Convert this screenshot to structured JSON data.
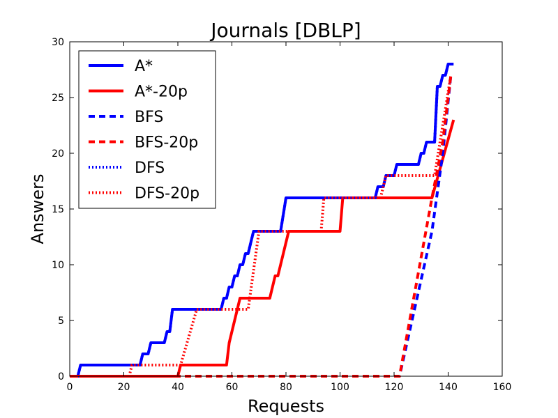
{
  "chart_data": {
    "type": "line",
    "title": "Journals [DBLP]",
    "xlabel": "Requests",
    "ylabel": "Answers",
    "xlim": [
      0,
      160
    ],
    "ylim": [
      0,
      30
    ],
    "xticks": [
      0,
      20,
      40,
      60,
      80,
      100,
      120,
      140,
      160
    ],
    "yticks": [
      0,
      5,
      10,
      15,
      20,
      25,
      30
    ],
    "grid": false,
    "legend_position": "top-left",
    "series": [
      {
        "name": "A*",
        "color": "#0000ff",
        "style": "solid",
        "points": [
          [
            0,
            0
          ],
          [
            3,
            0
          ],
          [
            4,
            1
          ],
          [
            26,
            1
          ],
          [
            27,
            2
          ],
          [
            29,
            2
          ],
          [
            30,
            3
          ],
          [
            35,
            3
          ],
          [
            36,
            4
          ],
          [
            37,
            4
          ],
          [
            38,
            6
          ],
          [
            56,
            6
          ],
          [
            57,
            7
          ],
          [
            58,
            7
          ],
          [
            59,
            8
          ],
          [
            60,
            8
          ],
          [
            61,
            9
          ],
          [
            62,
            9
          ],
          [
            63,
            10
          ],
          [
            64,
            10
          ],
          [
            65,
            11
          ],
          [
            66,
            11
          ],
          [
            67,
            12
          ],
          [
            68,
            13
          ],
          [
            78,
            13
          ],
          [
            80,
            16
          ],
          [
            113,
            16
          ],
          [
            114,
            17
          ],
          [
            116,
            17
          ],
          [
            117,
            18
          ],
          [
            120,
            18
          ],
          [
            121,
            19
          ],
          [
            129,
            19
          ],
          [
            130,
            20
          ],
          [
            131,
            20
          ],
          [
            132,
            21
          ],
          [
            135,
            21
          ],
          [
            136,
            26
          ],
          [
            137,
            26
          ],
          [
            138,
            27
          ],
          [
            139,
            27
          ],
          [
            140,
            28
          ],
          [
            142,
            28
          ]
        ]
      },
      {
        "name": "A*-20p",
        "color": "#ff0000",
        "style": "solid",
        "points": [
          [
            0,
            0
          ],
          [
            40,
            0
          ],
          [
            41,
            1
          ],
          [
            58,
            1
          ],
          [
            59,
            3
          ],
          [
            63,
            7
          ],
          [
            74,
            7
          ],
          [
            76,
            9
          ],
          [
            77,
            9
          ],
          [
            81,
            13
          ],
          [
            100,
            13
          ],
          [
            101,
            16
          ],
          [
            134,
            16
          ],
          [
            142,
            23
          ]
        ]
      },
      {
        "name": "BFS",
        "color": "#0000ff",
        "style": "dashed",
        "points": [
          [
            0,
            0
          ],
          [
            122,
            0
          ],
          [
            134,
            13
          ],
          [
            138,
            20
          ],
          [
            141,
            27
          ]
        ]
      },
      {
        "name": "BFS-20p",
        "color": "#ff0000",
        "style": "dashed",
        "points": [
          [
            0,
            0
          ],
          [
            122,
            0
          ],
          [
            134,
            16
          ],
          [
            138,
            21
          ],
          [
            141,
            27
          ]
        ]
      },
      {
        "name": "DFS",
        "color": "#0000ff",
        "style": "dotted",
        "points": [
          [
            0,
            0
          ],
          [
            3,
            0
          ],
          [
            4,
            1
          ],
          [
            26,
            1
          ],
          [
            27,
            2
          ],
          [
            29,
            2
          ],
          [
            30,
            3
          ],
          [
            35,
            3
          ],
          [
            36,
            4
          ],
          [
            37,
            4
          ],
          [
            38,
            6
          ],
          [
            56,
            6
          ],
          [
            57,
            7
          ],
          [
            58,
            7
          ],
          [
            59,
            8
          ],
          [
            60,
            8
          ],
          [
            61,
            9
          ],
          [
            62,
            9
          ],
          [
            63,
            10
          ],
          [
            64,
            10
          ],
          [
            65,
            11
          ],
          [
            66,
            11
          ],
          [
            67,
            12
          ],
          [
            68,
            13
          ],
          [
            78,
            13
          ],
          [
            80,
            16
          ],
          [
            113,
            16
          ],
          [
            114,
            17
          ],
          [
            116,
            17
          ],
          [
            117,
            18
          ],
          [
            120,
            18
          ],
          [
            121,
            19
          ],
          [
            129,
            19
          ],
          [
            130,
            20
          ],
          [
            131,
            20
          ],
          [
            132,
            21
          ],
          [
            135,
            21
          ],
          [
            136,
            26
          ],
          [
            137,
            26
          ],
          [
            138,
            27
          ],
          [
            139,
            27
          ],
          [
            140,
            28
          ],
          [
            142,
            28
          ]
        ]
      },
      {
        "name": "DFS-20p",
        "color": "#ff0000",
        "style": "dotted",
        "points": [
          [
            0,
            0
          ],
          [
            22,
            0
          ],
          [
            23,
            1
          ],
          [
            41,
            1
          ],
          [
            47,
            6
          ],
          [
            66,
            6
          ],
          [
            70,
            13
          ],
          [
            93,
            13
          ],
          [
            94,
            16
          ],
          [
            115,
            16
          ],
          [
            117,
            18
          ],
          [
            135,
            18
          ],
          [
            141,
            27
          ]
        ]
      }
    ]
  }
}
